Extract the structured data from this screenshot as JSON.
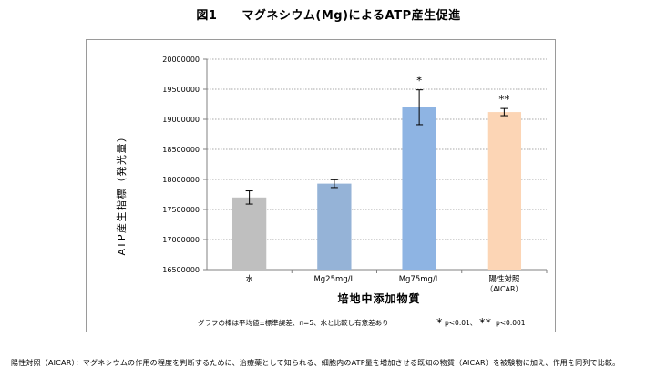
{
  "title": "図1　　マグネシウム(Mg)によるATP産生促進",
  "chart_data": {
    "type": "bar",
    "ylabel": "ATP産生指標（発光量）",
    "xlabel": "培地中添加物質",
    "ylim": [
      16500000,
      20000000
    ],
    "yticks": [
      16500000,
      17000000,
      17500000,
      18000000,
      18500000,
      19000000,
      19500000,
      20000000
    ],
    "ytick_labels": [
      "16500000",
      "17000000",
      "17500000",
      "18000000",
      "18500000",
      "19000000",
      "19500000",
      "20000000"
    ],
    "grid": true,
    "categories": [
      {
        "label": "水",
        "label2": "",
        "value": 17700000,
        "error": 110000,
        "color": "#bfbfbf",
        "annotation": ""
      },
      {
        "label": "Mg25mg/L",
        "label2": "",
        "value": 17930000,
        "error": 65000,
        "color": "#95b3d7",
        "annotation": ""
      },
      {
        "label": "Mg75mg/L",
        "label2": "",
        "value": 19200000,
        "error": 290000,
        "color": "#8eb4e3",
        "annotation": "*"
      },
      {
        "label": "陽性対照",
        "label2": "（AICAR）",
        "value": 19120000,
        "error": 60000,
        "color": "#fcd5b5",
        "annotation": "**"
      }
    ],
    "note_text": "グラフの棒は平均値±標準誤差、n=5、水と比較し有意差あり",
    "sig1_symbol": "*",
    "sig1_text": "p<0.01、",
    "sig2_symbol": "**",
    "sig2_text": "p<0.001"
  },
  "footnote": "陽性対照（AICAR）：マグネシウムの作用の程度を判断するために、治療薬として知られる、細胞内のATP量を増加させる既知の物質（AICAR）を被験物に加え、作用を同列で比較。"
}
